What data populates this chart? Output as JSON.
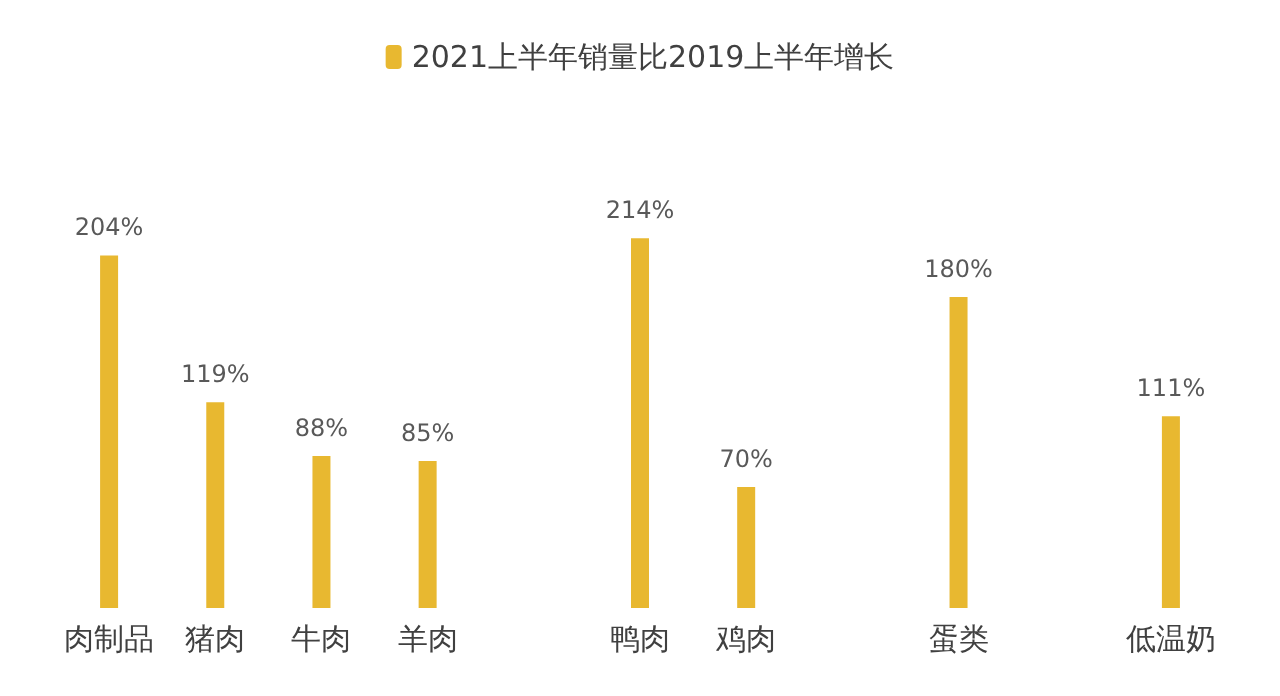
{
  "chart_data": {
    "type": "bar",
    "categories": [
      "肉制品",
      "猪肉",
      "牛肉",
      "羊肉",
      null,
      "鸭肉",
      "鸡肉",
      null,
      "蛋类",
      null,
      "低温奶"
    ],
    "series": [
      {
        "name": "2021上半年销量比2019上半年增长",
        "color": "#e8b830",
        "values": [
          204,
          119,
          88,
          85,
          null,
          214,
          70,
          null,
          180,
          null,
          111
        ],
        "value_labels": [
          "204%",
          "119%",
          "88%",
          "85%",
          null,
          "214%",
          "70%",
          null,
          "180%",
          null,
          "111%"
        ]
      }
    ],
    "legend": "top",
    "grid": false,
    "tick_labels": "x"
  }
}
